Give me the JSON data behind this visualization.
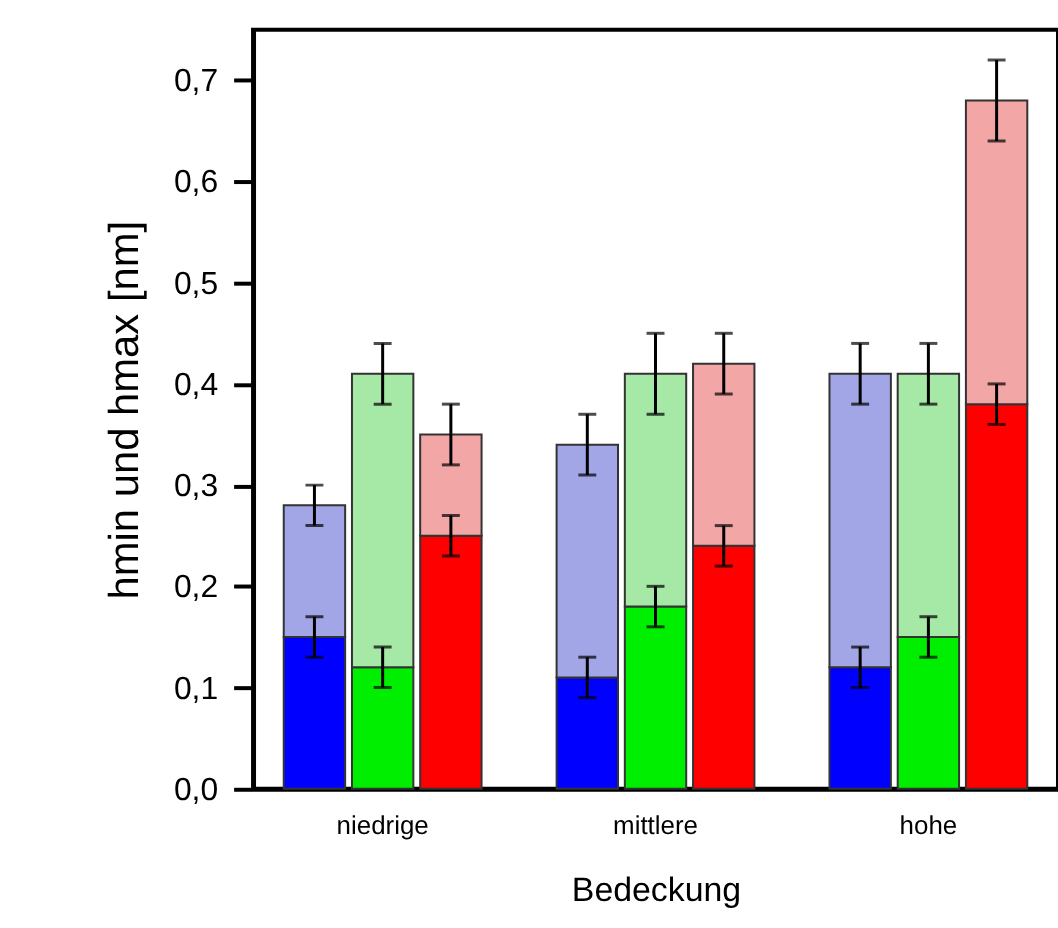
{
  "chart_data": {
    "type": "bar",
    "stacked": true,
    "xlabel": "Bedeckung",
    "ylabel": "hmin und hmax [nm]",
    "categories": [
      null,
      "niedrige",
      null,
      null,
      null,
      "mittlere",
      null,
      null,
      null,
      "hohe",
      null
    ],
    "series": [
      {
        "colors": [
          "#0000ff",
          "#00ee00",
          "#ff0000",
          null,
          "#0000ff",
          "#00ee00",
          "#ff0000",
          null,
          "#0000ff",
          "#00ee00",
          "#ff0000"
        ],
        "values": [
          0.15,
          0.12,
          0.25,
          null,
          0.11,
          0.18,
          0.24,
          null,
          0.12,
          0.15,
          0.38
        ],
        "errors": [
          0.02,
          0.02,
          0.02,
          null,
          0.02,
          0.02,
          0.02,
          null,
          0.02,
          0.02,
          0.02
        ]
      },
      {
        "colors": [
          "#a3a6e6",
          "#a6e8a6",
          "#f2a6a6",
          null,
          "#a3a6e6",
          "#a6e8a6",
          "#f2a6a6",
          null,
          "#a3a6e6",
          "#a6e8a6",
          "#f2a6a6"
        ],
        "values": [
          0.13,
          0.29,
          0.1,
          null,
          0.23,
          0.23,
          0.18,
          null,
          0.29,
          0.26,
          0.3
        ],
        "errors": [
          0.02,
          0.03,
          0.03,
          null,
          0.03,
          0.04,
          0.03,
          null,
          0.03,
          0.03,
          0.04
        ]
      }
    ],
    "ylim": [
      0,
      0.75
    ],
    "yticks": [
      {
        "value": 0,
        "label": "0,0"
      },
      {
        "value": 0.1,
        "label": "0,1"
      },
      {
        "value": 0.2,
        "label": "0,2"
      },
      {
        "value": 0.3,
        "label": "0,3"
      },
      {
        "value": 0.4,
        "label": "0,4"
      },
      {
        "value": 0.5,
        "label": "0,5"
      },
      {
        "value": 0.6,
        "label": "0,6"
      },
      {
        "value": 0.7,
        "label": "0,7"
      }
    ],
    "grid": false
  }
}
